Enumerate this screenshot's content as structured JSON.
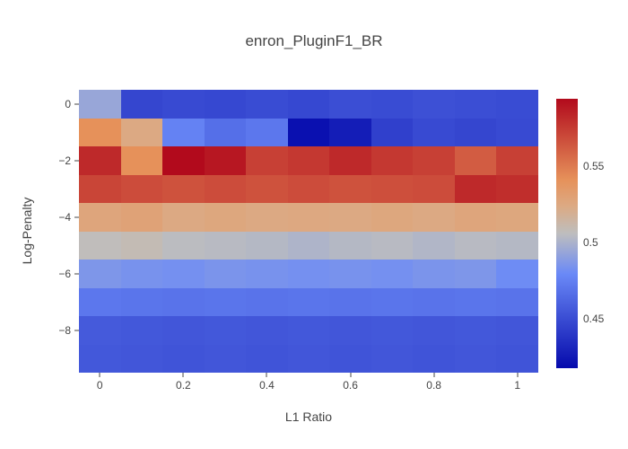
{
  "title": "enron_PluginF1_BR",
  "chart_data": {
    "type": "heatmap",
    "title": "enron_PluginF1_BR",
    "xlabel": "L1 Ratio",
    "ylabel": "Log-Penalty",
    "x": [
      0,
      0.1,
      0.2,
      0.3,
      0.4,
      0.5,
      0.6,
      0.7,
      0.8,
      0.9,
      1.0
    ],
    "y": [
      0,
      -1,
      -2,
      -3,
      -4,
      -5,
      -6,
      -7,
      -8,
      -9
    ],
    "z": [
      [
        0.494,
        0.447,
        0.449,
        0.448,
        0.45,
        0.448,
        0.451,
        0.45,
        0.452,
        0.451,
        0.45
      ],
      [
        0.541,
        0.524,
        0.476,
        0.467,
        0.471,
        0.421,
        0.427,
        0.444,
        0.449,
        0.447,
        0.449
      ],
      [
        0.582,
        0.541,
        0.594,
        0.589,
        0.573,
        0.576,
        0.582,
        0.576,
        0.573,
        0.562,
        0.573
      ],
      [
        0.571,
        0.568,
        0.566,
        0.568,
        0.566,
        0.568,
        0.566,
        0.567,
        0.568,
        0.582,
        0.58
      ],
      [
        0.527,
        0.529,
        0.524,
        0.526,
        0.524,
        0.525,
        0.524,
        0.526,
        0.524,
        0.527,
        0.526
      ],
      [
        0.507,
        0.509,
        0.505,
        0.504,
        0.503,
        0.501,
        0.503,
        0.504,
        0.502,
        0.504,
        0.503
      ],
      [
        0.486,
        0.484,
        0.483,
        0.485,
        0.484,
        0.483,
        0.484,
        0.483,
        0.485,
        0.486,
        0.481
      ],
      [
        0.471,
        0.47,
        0.469,
        0.47,
        0.469,
        0.47,
        0.469,
        0.47,
        0.469,
        0.47,
        0.469
      ],
      [
        0.457,
        0.456,
        0.455,
        0.456,
        0.455,
        0.456,
        0.455,
        0.456,
        0.455,
        0.456,
        0.455
      ],
      [
        0.456,
        0.455,
        0.454,
        0.455,
        0.454,
        0.455,
        0.454,
        0.455,
        0.454,
        0.455,
        0.454
      ]
    ],
    "zmin": 0.418,
    "zmax": 0.594,
    "colorscale": [
      [
        0.0,
        5,
        10,
        172
      ],
      [
        0.35,
        106,
        137,
        247
      ],
      [
        0.5,
        190,
        190,
        190
      ],
      [
        0.6,
        220,
        170,
        132
      ],
      [
        0.7,
        230,
        145,
        90
      ],
      [
        1.0,
        178,
        10,
        28
      ]
    ],
    "x_ticks": [
      {
        "value": 0,
        "label": "0"
      },
      {
        "value": 0.2,
        "label": "0.2"
      },
      {
        "value": 0.4,
        "label": "0.4"
      },
      {
        "value": 0.6,
        "label": "0.6"
      },
      {
        "value": 0.8,
        "label": "0.8"
      },
      {
        "value": 1,
        "label": "1"
      }
    ],
    "y_ticks": [
      {
        "value": 0,
        "label": "0"
      },
      {
        "value": -2,
        "label": "−2"
      },
      {
        "value": -4,
        "label": "−4"
      },
      {
        "value": -6,
        "label": "−6"
      },
      {
        "value": -8,
        "label": "−8"
      }
    ],
    "colorbar_ticks": [
      {
        "value": 0.45,
        "label": "0.45"
      },
      {
        "value": 0.5,
        "label": "0.5"
      },
      {
        "value": 0.55,
        "label": "0.55"
      }
    ],
    "legend_position": "right-colorbar",
    "grid": false
  }
}
